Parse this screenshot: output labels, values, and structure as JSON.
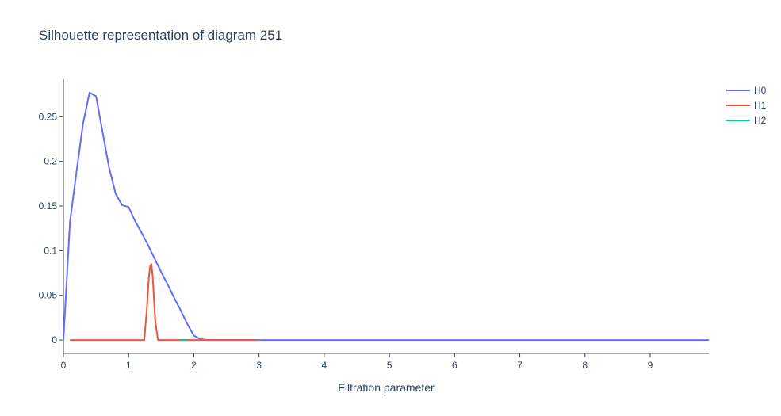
{
  "chart_data": {
    "type": "line",
    "title": "Silhouette representation of diagram 251",
    "xlabel": "Filtration parameter",
    "ylabel": "",
    "xlim": [
      0,
      9.9
    ],
    "ylim": [
      -0.015,
      0.292
    ],
    "x_ticks": [
      0,
      1,
      2,
      3,
      4,
      5,
      6,
      7,
      8,
      9
    ],
    "x_tick_labels": [
      "0",
      "1",
      "2",
      "3",
      "4",
      "5",
      "6",
      "7",
      "8",
      "9"
    ],
    "y_ticks": [
      0,
      0.05,
      0.1,
      0.15,
      0.2,
      0.25
    ],
    "y_tick_labels": [
      "0",
      "0.05",
      "0.1",
      "0.15",
      "0.2",
      "0.25"
    ],
    "grid": false,
    "legend_position": "top-right",
    "series": [
      {
        "name": "H0",
        "color": "#636efa",
        "x": [
          0,
          0.1,
          0.2,
          0.3,
          0.4,
          0.5,
          0.6,
          0.7,
          0.8,
          0.9,
          1.0,
          1.1,
          1.2,
          1.3,
          1.4,
          1.5,
          1.6,
          1.7,
          1.8,
          1.9,
          2.0,
          2.1,
          2.2,
          2.5,
          3.0,
          4.0,
          5.0,
          6.0,
          7.0,
          8.0,
          9.0,
          9.9
        ],
        "y": [
          0,
          0.132,
          0.188,
          0.242,
          0.277,
          0.273,
          0.233,
          0.193,
          0.164,
          0.151,
          0.149,
          0.133,
          0.12,
          0.106,
          0.091,
          0.076,
          0.062,
          0.047,
          0.033,
          0.018,
          0.005,
          0.001,
          0,
          0,
          0,
          0,
          0,
          0,
          0,
          0,
          0,
          0
        ]
      },
      {
        "name": "H1",
        "color": "#ef553b",
        "x": [
          0.1,
          0.5,
          1.0,
          1.24,
          1.28,
          1.31,
          1.33,
          1.35,
          1.37,
          1.41,
          1.45,
          1.7,
          2.0,
          2.5,
          2.97
        ],
        "y": [
          0,
          0,
          0,
          0,
          0.035,
          0.07,
          0.083,
          0.085,
          0.07,
          0.02,
          0,
          0,
          0,
          0,
          0
        ]
      },
      {
        "name": "H2",
        "color": "#00cc96",
        "x": [
          1.8,
          1.9
        ],
        "y": [
          0,
          0
        ]
      }
    ]
  }
}
